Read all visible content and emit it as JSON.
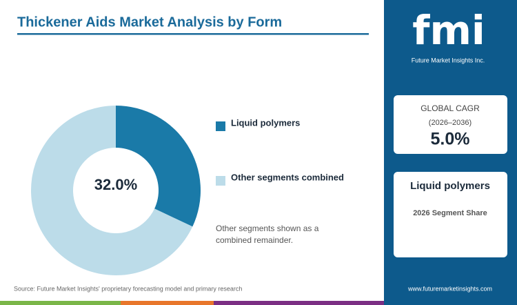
{
  "chart_data": {
    "type": "donut",
    "title": "Thickener Aids Market Analysis by Form",
    "categories": [
      "Liquid polymers",
      "Other segments combined"
    ],
    "values": [
      32,
      68
    ],
    "value_labels": [
      "32.0%",
      null
    ],
    "colors": [
      "#1a7aa8",
      "#bcdce9"
    ],
    "note": "Other segments shown as a combined remainder.",
    "source": "Source: Future Market Insights' proprietary forecasting model and primary research"
  },
  "sidebar": {
    "logo": "fmi",
    "logo_caption": "Future Market Insights Inc.",
    "cagr_label": "GLOBAL CAGR",
    "cagr_period": "(2026–2036)",
    "cagr_value": "5.0%",
    "segment": "Liquid polymers",
    "segment_caption": "2026 Segment Share",
    "url": "www.futuremarketinsights.com"
  }
}
